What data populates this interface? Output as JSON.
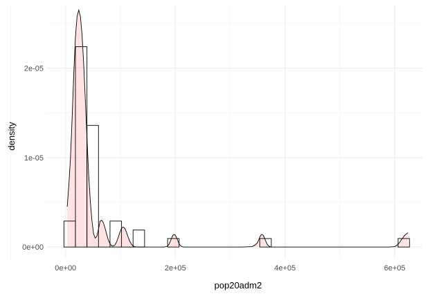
{
  "chart_data": {
    "type": "histogram",
    "title": "",
    "xlabel": "pop20adm2",
    "ylabel": "density",
    "xlim": [
      -35000,
      650000
    ],
    "ylim": [
      -1.3e-06,
      2.7e-05
    ],
    "x_ticks": [
      {
        "value": 0,
        "label": "0e+00"
      },
      {
        "value": 200000,
        "label": "2e+05"
      },
      {
        "value": 400000,
        "label": "4e+05"
      },
      {
        "value": 600000,
        "label": "6e+05"
      }
    ],
    "x_minor_ticks": [
      -100000,
      100000,
      300000,
      500000
    ],
    "y_ticks": [
      {
        "value": 0,
        "label": "0e+00"
      },
      {
        "value": 1e-05,
        "label": "1e-05"
      },
      {
        "value": 2e-05,
        "label": "2e-05"
      }
    ],
    "y_minor_ticks": [
      5e-06,
      1.5e-05,
      2.5e-05
    ],
    "grid": true,
    "bar_fill": "#ffffff",
    "bar_stroke": "#000000",
    "density_fill": "#ffc0c0",
    "density_fill_opacity": 0.45,
    "density_stroke": "#000000",
    "bins": [
      {
        "x0": -3000,
        "x1": 18000,
        "y": 2.9e-06
      },
      {
        "x0": 18000,
        "x1": 39000,
        "y": 2.24e-05
      },
      {
        "x0": 39000,
        "x1": 60000,
        "y": 1.36e-05
      },
      {
        "x0": 60000,
        "x1": 81000,
        "y": 0
      },
      {
        "x0": 81000,
        "x1": 102000,
        "y": 2.9e-06
      },
      {
        "x0": 102000,
        "x1": 123000,
        "y": 0
      },
      {
        "x0": 123000,
        "x1": 144000,
        "y": 1.9e-06
      },
      {
        "x0": 186000,
        "x1": 207000,
        "y": 9.5e-07
      },
      {
        "x0": 354000,
        "x1": 375000,
        "y": 9.5e-07
      },
      {
        "x0": 606000,
        "x1": 627000,
        "y": 9.5e-07
      }
    ],
    "density_x": [
      3000,
      6000,
      9000,
      12000,
      15000,
      18000,
      21000,
      24000,
      27000,
      30000,
      33000,
      36000,
      39000,
      42000,
      45000,
      48000,
      51000,
      54000,
      57000,
      60000,
      63000,
      66000,
      69000,
      72000,
      75000,
      78000,
      81000,
      84000,
      87000,
      90000,
      93000,
      96000,
      99000,
      102000,
      105000,
      108000,
      111000,
      114000,
      117000,
      120000,
      123000,
      126000,
      129000,
      132000,
      135000,
      138000,
      141000,
      144000,
      147000,
      150000,
      155000,
      160000,
      165000,
      170000,
      175000,
      180000,
      185000,
      188000,
      190000,
      192000,
      194000,
      196000,
      198000,
      200000,
      202000,
      204000,
      206000,
      208000,
      212000,
      216000,
      220000,
      240000,
      260000,
      280000,
      300000,
      320000,
      340000,
      346000,
      350000,
      352000,
      354000,
      356000,
      358000,
      360000,
      362000,
      364000,
      366000,
      368000,
      372000,
      376000,
      380000,
      400000,
      440000,
      480000,
      520000,
      560000,
      590000,
      600000,
      604000,
      608000,
      612000,
      615000,
      618000,
      621000,
      624000
    ],
    "density_y": [
      4.5e-06,
      7e-06,
      1e-05,
      1.45e-05,
      1.95e-05,
      2.35e-05,
      2.58e-05,
      2.65e-05,
      2.58e-05,
      2.38e-05,
      2.05e-05,
      1.65e-05,
      1.22e-05,
      8.2e-06,
      5.2e-06,
      3e-06,
      1.5e-06,
      1e-06,
      1.2e-06,
      2e-06,
      2.9e-06,
      3e-06,
      2.7e-06,
      2.1e-06,
      1.4e-06,
      7.7e-07,
      3.8e-07,
      1.4e-07,
      1.1e-07,
      2.4e-07,
      5.7e-07,
      1.08e-06,
      1.65e-06,
      2.09e-06,
      2.25e-06,
      2.09e-06,
      1.66e-06,
      1.12e-06,
      6.5e-07,
      3.2e-07,
      1.3e-07,
      4e-08,
      1e-08,
      0,
      0,
      0,
      0,
      0,
      0,
      0,
      0,
      0,
      0,
      0,
      0,
      0,
      8e-08,
      2.5e-07,
      5e-07,
      8e-07,
      1.1e-06,
      1.33e-06,
      1.4e-06,
      1.33e-06,
      1.1e-06,
      8e-07,
      5e-07,
      2.5e-07,
      5e-08,
      0,
      0,
      0,
      0,
      0,
      0,
      0,
      5e-08,
      2.5e-07,
      5e-07,
      8e-07,
      1.1e-06,
      1.33e-06,
      1.4e-06,
      1.33e-06,
      1.1e-06,
      8e-07,
      5e-07,
      2.5e-07,
      5e-08,
      0,
      0,
      0,
      0,
      0,
      0,
      0,
      0,
      5e-08,
      2e-07,
      4.5e-07,
      8e-07,
      1.05e-06,
      1.3e-06,
      1.45e-06,
      1.6e-06
    ]
  }
}
